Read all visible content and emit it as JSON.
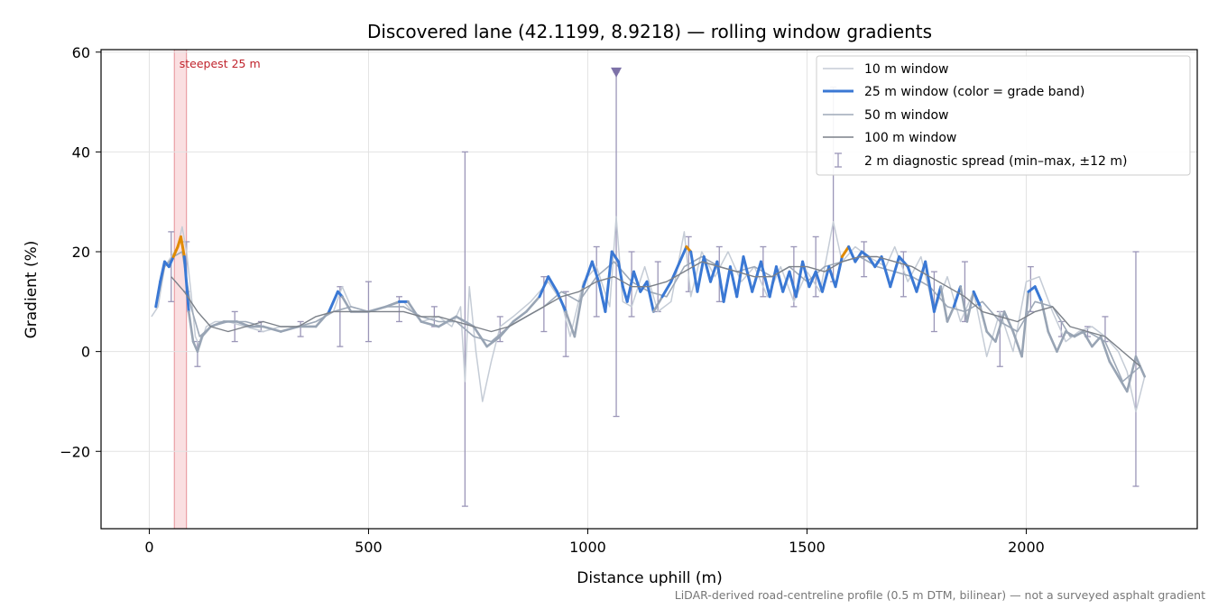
{
  "chart_data": {
    "type": "line",
    "title": "Discovered lane (42.1199, 8.9218) — rolling window gradients",
    "xlabel": "Distance uphill (m)",
    "ylabel": "Gradient (%)",
    "xlim": [
      -110,
      2390
    ],
    "ylim": [
      -35.5,
      60.5
    ],
    "xticks": [
      0,
      500,
      1000,
      1500,
      2000
    ],
    "yticks": [
      -20,
      0,
      20,
      40,
      60
    ],
    "xtick_labels": [
      "0",
      "500",
      "1000",
      "1500",
      "2000"
    ],
    "ytick_labels": [
      "−20",
      "0",
      "20",
      "40",
      "60"
    ],
    "grid": true,
    "legend_position": "top-right",
    "footnote": "LiDAR-derived road-centreline profile (0.5 m DTM, bilinear) — not a surveyed asphalt gradient",
    "steepest_segment": {
      "x_start": 57,
      "x_end": 85,
      "label": "steepest 25 m",
      "color": "#f4b8bd"
    },
    "peak_marker": {
      "x": 1065,
      "y": 56
    },
    "colors": {
      "w10": "#c5ccd6",
      "w25_low": "#98a4b4",
      "w25_mid": "#3a78d4",
      "w25_high": "#e08a00",
      "w50": "#9ea9b8",
      "w100": "#7b8088",
      "diag": "#9b96b8",
      "marker": "#7d72a8"
    },
    "series": [
      {
        "name": "10 m window",
        "key": "w10",
        "x": [
          5,
          20,
          35,
          50,
          65,
          75,
          85,
          95,
          105,
          115,
          130,
          150,
          180,
          220,
          260,
          300,
          340,
          380,
          420,
          440,
          460,
          500,
          540,
          580,
          620,
          660,
          690,
          710,
          720,
          730,
          745,
          760,
          780,
          800,
          830,
          870,
          910,
          940,
          960,
          990,
          1020,
          1050,
          1065,
          1080,
          1100,
          1130,
          1160,
          1190,
          1220,
          1235,
          1260,
          1290,
          1320,
          1350,
          1380,
          1410,
          1440,
          1470,
          1500,
          1530,
          1560,
          1580,
          1610,
          1640,
          1680,
          1700,
          1730,
          1760,
          1790,
          1820,
          1850,
          1880,
          1910,
          1940,
          1970,
          2000,
          2030,
          2060,
          2090,
          2120,
          2150,
          2180,
          2210,
          2230,
          2250,
          2270
        ],
        "y": [
          7,
          9,
          17,
          19,
          21,
          25,
          20,
          12,
          3,
          1,
          5,
          6,
          6,
          5,
          4,
          5,
          5,
          6,
          8,
          13,
          9,
          8,
          9,
          10,
          6,
          7,
          5,
          9,
          -6,
          13,
          0,
          -10,
          -2,
          5,
          7,
          10,
          14,
          10,
          3,
          14,
          17,
          9,
          27,
          10,
          9,
          17,
          8,
          10,
          24,
          11,
          20,
          15,
          20,
          14,
          17,
          11,
          17,
          10,
          16,
          12,
          26,
          18,
          21,
          19,
          17,
          21,
          14,
          19,
          8,
          15,
          6,
          12,
          -1,
          8,
          0,
          14,
          15,
          8,
          2,
          4,
          5,
          3,
          0,
          -4,
          -12,
          -5
        ]
      },
      {
        "name": "25 m window (color = grade band)",
        "key": "w25",
        "x": [
          15,
          25,
          35,
          45,
          55,
          65,
          72,
          80,
          90,
          100,
          110,
          120,
          140,
          170,
          200,
          230,
          260,
          300,
          340,
          380,
          410,
          430,
          440,
          460,
          500,
          540,
          570,
          590,
          620,
          660,
          700,
          740,
          770,
          800,
          830,
          860,
          890,
          910,
          930,
          950,
          970,
          990,
          1010,
          1025,
          1040,
          1055,
          1070,
          1080,
          1090,
          1105,
          1120,
          1135,
          1150,
          1170,
          1190,
          1210,
          1225,
          1235,
          1250,
          1265,
          1280,
          1295,
          1310,
          1325,
          1340,
          1355,
          1375,
          1395,
          1415,
          1430,
          1445,
          1460,
          1475,
          1490,
          1505,
          1520,
          1535,
          1550,
          1565,
          1580,
          1595,
          1610,
          1625,
          1640,
          1655,
          1670,
          1690,
          1710,
          1730,
          1750,
          1770,
          1790,
          1805,
          1820,
          1835,
          1850,
          1865,
          1880,
          1895,
          1910,
          1930,
          1950,
          1970,
          1990,
          2005,
          2020,
          2035,
          2050,
          2070,
          2090,
          2110,
          2130,
          2150,
          2170,
          2190,
          2210,
          2230,
          2250,
          2270
        ],
        "y": [
          9,
          14,
          18,
          17,
          19,
          21,
          23,
          19,
          8,
          2,
          0,
          3,
          5,
          6,
          6,
          5,
          5,
          4,
          5,
          5,
          8,
          12,
          11,
          8,
          8,
          9,
          10,
          10,
          6,
          5,
          7,
          5,
          1,
          3,
          6,
          8,
          11,
          15,
          12,
          8,
          3,
          13,
          18,
          14,
          8,
          20,
          18,
          13,
          10,
          16,
          12,
          14,
          8,
          11,
          14,
          18,
          21,
          20,
          12,
          19,
          14,
          18,
          10,
          17,
          11,
          19,
          12,
          18,
          11,
          17,
          12,
          16,
          11,
          18,
          13,
          16,
          12,
          17,
          13,
          19,
          21,
          18,
          20,
          19,
          17,
          19,
          13,
          19,
          17,
          12,
          18,
          8,
          13,
          6,
          9,
          13,
          6,
          12,
          9,
          4,
          2,
          8,
          4,
          -1,
          12,
          13,
          10,
          4,
          0,
          4,
          3,
          4,
          1,
          3,
          -2,
          -5,
          -8,
          -1,
          -5
        ]
      },
      {
        "name": "50 m window",
        "key": "w50",
        "x": [
          15,
          35,
          55,
          75,
          95,
          115,
          140,
          180,
          220,
          260,
          300,
          340,
          380,
          420,
          460,
          500,
          540,
          580,
          620,
          660,
          700,
          740,
          780,
          820,
          860,
          900,
          940,
          980,
          1020,
          1060,
          1100,
          1140,
          1180,
          1220,
          1260,
          1300,
          1340,
          1380,
          1420,
          1460,
          1500,
          1540,
          1580,
          1620,
          1660,
          1700,
          1740,
          1780,
          1820,
          1860,
          1900,
          1940,
          1980,
          2020,
          2060,
          2100,
          2140,
          2180,
          2220,
          2260
        ],
        "y": [
          9,
          17,
          19,
          20,
          9,
          3,
          5,
          6,
          6,
          5,
          4,
          5,
          6,
          8,
          9,
          8,
          9,
          9,
          7,
          6,
          6,
          3,
          2,
          5,
          7,
          9,
          12,
          10,
          15,
          18,
          14,
          12,
          11,
          17,
          19,
          17,
          16,
          17,
          15,
          17,
          14,
          17,
          18,
          19,
          17,
          16,
          15,
          13,
          9,
          8,
          10,
          6,
          4,
          10,
          9,
          3,
          4,
          2,
          -6,
          -3
        ]
      },
      {
        "name": "100 m window",
        "key": "w100",
        "x": [
          50,
          80,
          110,
          140,
          180,
          220,
          260,
          300,
          340,
          380,
          420,
          460,
          500,
          540,
          580,
          620,
          660,
          700,
          740,
          780,
          820,
          860,
          900,
          940,
          980,
          1020,
          1060,
          1100,
          1140,
          1180,
          1220,
          1260,
          1300,
          1340,
          1380,
          1420,
          1460,
          1500,
          1540,
          1580,
          1620,
          1660,
          1700,
          1740,
          1780,
          1820,
          1860,
          1900,
          1940,
          1980,
          2020,
          2060,
          2100,
          2140,
          2180,
          2220,
          2260
        ],
        "y": [
          15,
          12,
          8,
          5,
          4,
          5,
          6,
          5,
          5,
          7,
          8,
          8,
          8,
          8,
          8,
          7,
          7,
          6,
          5,
          4,
          5,
          7,
          9,
          11,
          12,
          14,
          15,
          13,
          13,
          14,
          16,
          18,
          17,
          16,
          15,
          15,
          17,
          17,
          16,
          18,
          19,
          19,
          18,
          17,
          15,
          13,
          11,
          8,
          7,
          6,
          8,
          9,
          5,
          4,
          3,
          0,
          -3
        ]
      },
      {
        "name": "2 m diagnostic spread (min–max, ±12 m)",
        "key": "diag",
        "x": [
          50,
          85,
          110,
          195,
          255,
          345,
          435,
          500,
          570,
          650,
          720,
          800,
          900,
          950,
          1020,
          1065,
          1100,
          1160,
          1230,
          1300,
          1400,
          1470,
          1520,
          1560,
          1630,
          1720,
          1790,
          1860,
          1940,
          2010,
          2080,
          2140,
          2180,
          2250
        ],
        "low": [
          10,
          12,
          -3,
          2,
          4,
          3,
          1,
          2,
          6,
          5,
          -31,
          2,
          4,
          -1,
          7,
          -13,
          7,
          8,
          12,
          10,
          11,
          9,
          11,
          14,
          15,
          11,
          4,
          6,
          -3,
          8,
          3,
          3,
          2,
          -27
        ],
        "high": [
          24,
          22,
          2,
          8,
          6,
          6,
          13,
          14,
          11,
          9,
          40,
          7,
          15,
          12,
          21,
          56,
          20,
          18,
          23,
          21,
          21,
          21,
          23,
          53,
          22,
          20,
          16,
          18,
          8,
          17,
          6,
          5,
          7,
          20
        ]
      }
    ],
    "grade_bands": {
      "mid_threshold": 10,
      "high_threshold": 20
    }
  }
}
